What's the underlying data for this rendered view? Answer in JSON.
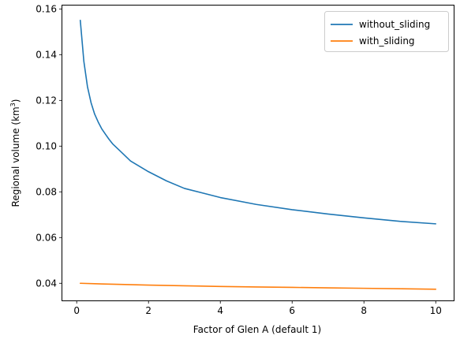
{
  "chart_data": {
    "type": "line",
    "xlabel": "Factor of Glen A (default 1)",
    "ylabel": {
      "prefix": "Regional volume (km",
      "sup": "3",
      "suffix": ")"
    },
    "xlim": [
      -0.4,
      10.5
    ],
    "ylim": [
      0.0325,
      0.1615
    ],
    "xticks": [
      0,
      2,
      4,
      6,
      8,
      10
    ],
    "xtick_labels": [
      "0",
      "2",
      "4",
      "6",
      "8",
      "10"
    ],
    "yticks": [
      0.04,
      0.06,
      0.08,
      0.1,
      0.12,
      0.14,
      0.16
    ],
    "ytick_labels": [
      "0.04",
      "0.06",
      "0.08",
      "0.10",
      "0.12",
      "0.14",
      "0.16"
    ],
    "legend_position": "top-right",
    "grid": false,
    "series": [
      {
        "name": "without_sliding",
        "color": "#1f77b4",
        "x": [
          0.1,
          0.2,
          0.3,
          0.4,
          0.5,
          0.6,
          0.7,
          0.8,
          0.9,
          1.0,
          1.2,
          1.5,
          2.0,
          2.5,
          3.0,
          4.0,
          5.0,
          6.0,
          7.0,
          8.0,
          9.0,
          10.0
        ],
        "values": [
          0.155,
          0.137,
          0.126,
          0.119,
          0.114,
          0.1105,
          0.1075,
          0.1052,
          0.103,
          0.101,
          0.098,
          0.0935,
          0.0888,
          0.0848,
          0.0815,
          0.0775,
          0.0745,
          0.0722,
          0.0703,
          0.0686,
          0.0671,
          0.066
        ]
      },
      {
        "name": "with_sliding",
        "color": "#ff7f0e",
        "x": [
          0.1,
          0.5,
          1.0,
          2.0,
          3.0,
          4.0,
          5.0,
          6.0,
          7.0,
          8.0,
          9.0,
          10.0
        ],
        "values": [
          0.04,
          0.0398,
          0.0396,
          0.0392,
          0.0389,
          0.0386,
          0.0384,
          0.0382,
          0.038,
          0.0378,
          0.0376,
          0.0374
        ]
      }
    ]
  }
}
